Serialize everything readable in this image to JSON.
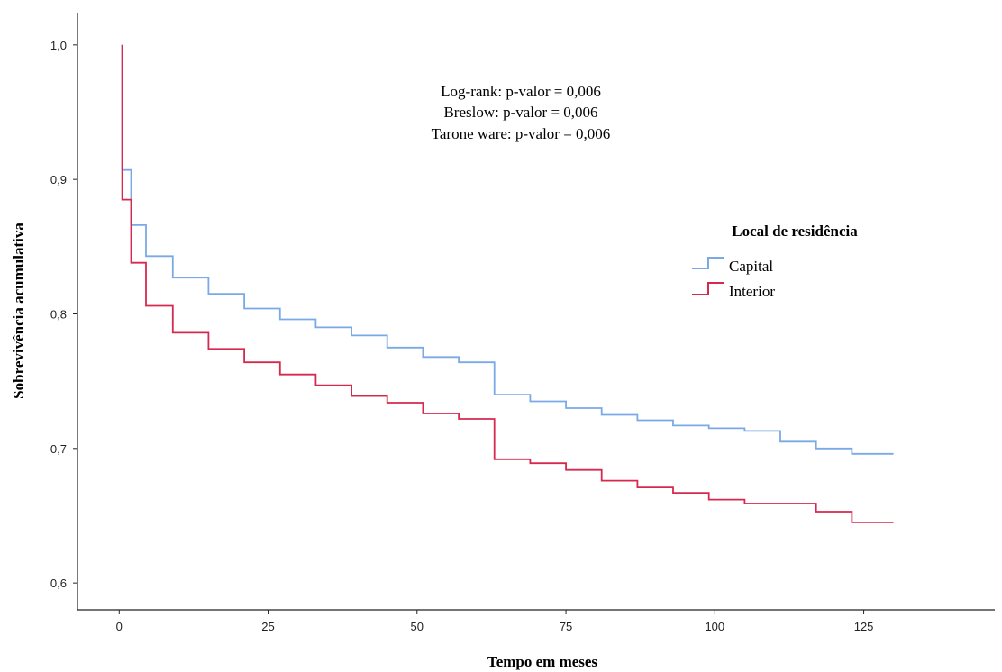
{
  "chart_data": {
    "type": "line",
    "step": true,
    "title": "",
    "xlabel": "Tempo em meses",
    "ylabel": "Sobrevivência acumulativa",
    "xlim": [
      -7,
      147
    ],
    "ylim": [
      0.58,
      1.024
    ],
    "x_ticks": [
      0,
      25,
      50,
      75,
      100,
      125
    ],
    "x_tick_labels": [
      "0",
      "25",
      "50",
      "75",
      "100",
      "125"
    ],
    "y_ticks": [
      0.6,
      0.7,
      0.8,
      0.9,
      1.0
    ],
    "y_tick_labels": [
      "0,6",
      "0,7",
      "0,8",
      "0,9",
      "1,0"
    ],
    "grid": false,
    "legend": {
      "title": "Local de residência",
      "placement": "right"
    },
    "annotations": [
      "Log-rank: p-valor = 0,006",
      "Breslow: p-valor = 0,006",
      "Tarone ware: p-valor = 0,006"
    ],
    "series": [
      {
        "name": "Capital",
        "color": "#7aaae6",
        "x": [
          0.5,
          0.5,
          2,
          4.5,
          9,
          15,
          21,
          27,
          33,
          39,
          45,
          51,
          57,
          63,
          69,
          75,
          81,
          87,
          93,
          99,
          105,
          111,
          117,
          123,
          130
        ],
        "y": [
          1.0,
          0.907,
          0.866,
          0.843,
          0.827,
          0.815,
          0.804,
          0.796,
          0.79,
          0.784,
          0.775,
          0.768,
          0.764,
          0.74,
          0.735,
          0.73,
          0.725,
          0.721,
          0.717,
          0.715,
          0.713,
          0.705,
          0.7,
          0.696,
          0.696
        ]
      },
      {
        "name": "Interior",
        "color": "#d6294f",
        "x": [
          0.5,
          0.5,
          2,
          4.5,
          9,
          15,
          21,
          27,
          33,
          39,
          45,
          51,
          57,
          63,
          69,
          75,
          81,
          87,
          93,
          99,
          105,
          111,
          117,
          123,
          130
        ],
        "y": [
          1.0,
          0.885,
          0.838,
          0.806,
          0.786,
          0.774,
          0.764,
          0.755,
          0.747,
          0.739,
          0.734,
          0.726,
          0.722,
          0.692,
          0.689,
          0.684,
          0.676,
          0.671,
          0.667,
          0.662,
          0.659,
          0.659,
          0.653,
          0.645,
          0.645
        ]
      }
    ]
  }
}
